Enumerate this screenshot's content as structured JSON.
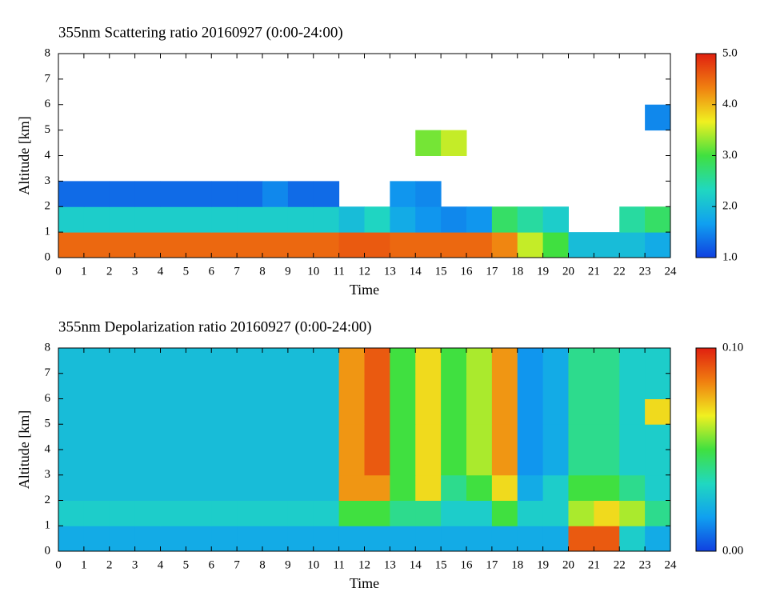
{
  "chart_data": [
    {
      "type": "heatmap",
      "title": "355nm Scattering ratio  20160927 (0:00-24:00)",
      "xlabel": "Time",
      "ylabel": "Altitude [km]",
      "xlim": [
        0,
        24
      ],
      "ylim": [
        0,
        8
      ],
      "xticks": [
        0,
        1,
        2,
        3,
        4,
        5,
        6,
        7,
        8,
        9,
        10,
        11,
        12,
        13,
        14,
        15,
        16,
        17,
        18,
        19,
        20,
        21,
        22,
        23,
        24
      ],
      "yticks": [
        0,
        1,
        2,
        3,
        4,
        5,
        6,
        7,
        8
      ],
      "clim": [
        1,
        5
      ],
      "cticks": [
        {
          "value": 1,
          "label": "1.0"
        },
        {
          "value": 2,
          "label": "2.0"
        },
        {
          "value": 3,
          "label": "3.0"
        },
        {
          "value": 4,
          "label": "4.0"
        },
        {
          "value": 5,
          "label": "5.0"
        }
      ],
      "colormap": [
        "#1040e0",
        "#10a0f0",
        "#20d8c0",
        "#40e040",
        "#f0f020",
        "#f08010",
        "#e02010"
      ],
      "values": [
        [
          4.5,
          4.5,
          4.5,
          4.5,
          4.5,
          4.5,
          4.5,
          4.5,
          4.5,
          4.5,
          4.5,
          4.6,
          4.6,
          4.5,
          4.5,
          4.5,
          4.5,
          4.3,
          3.5,
          3.0,
          2.0,
          2.0,
          2.0,
          1.8
        ],
        [
          2.2,
          2.2,
          2.2,
          2.2,
          2.2,
          2.2,
          2.2,
          2.2,
          2.2,
          2.2,
          2.2,
          2.0,
          2.3,
          1.8,
          1.6,
          1.5,
          1.6,
          2.8,
          2.5,
          2.2,
          null,
          null,
          2.5,
          2.8
        ],
        [
          1.3,
          1.3,
          1.3,
          1.3,
          1.3,
          1.3,
          1.3,
          1.3,
          1.5,
          1.3,
          1.3,
          null,
          null,
          1.6,
          1.5,
          null,
          null,
          null,
          null,
          null,
          null,
          null,
          null,
          null
        ],
        [
          null,
          null,
          null,
          null,
          null,
          null,
          null,
          null,
          null,
          null,
          null,
          null,
          null,
          null,
          null,
          null,
          null,
          null,
          null,
          null,
          null,
          null,
          null,
          null
        ],
        [
          null,
          null,
          null,
          null,
          null,
          null,
          null,
          null,
          null,
          null,
          null,
          null,
          null,
          null,
          3.2,
          3.5,
          null,
          null,
          null,
          null,
          null,
          null,
          null,
          null
        ],
        [
          null,
          null,
          null,
          null,
          null,
          null,
          null,
          null,
          null,
          null,
          null,
          null,
          null,
          null,
          null,
          null,
          null,
          null,
          null,
          null,
          null,
          null,
          null,
          1.5
        ],
        [
          null,
          null,
          null,
          null,
          null,
          null,
          null,
          null,
          null,
          null,
          null,
          null,
          null,
          null,
          null,
          null,
          null,
          null,
          null,
          null,
          null,
          null,
          null,
          null
        ],
        [
          null,
          null,
          null,
          null,
          null,
          null,
          null,
          null,
          null,
          null,
          null,
          null,
          null,
          null,
          null,
          null,
          null,
          null,
          null,
          null,
          null,
          null,
          null,
          null
        ]
      ]
    },
    {
      "type": "heatmap",
      "title": "355nm Depolarization ratio  20160927 (0:00-24:00)",
      "xlabel": "Time",
      "ylabel": "Altitude [km]",
      "xlim": [
        0,
        24
      ],
      "ylim": [
        0,
        8
      ],
      "xticks": [
        0,
        1,
        2,
        3,
        4,
        5,
        6,
        7,
        8,
        9,
        10,
        11,
        12,
        13,
        14,
        15,
        16,
        17,
        18,
        19,
        20,
        21,
        22,
        23,
        24
      ],
      "yticks": [
        0,
        1,
        2,
        3,
        4,
        5,
        6,
        7,
        8
      ],
      "clim": [
        0,
        0.1
      ],
      "cticks": [
        {
          "value": 0,
          "label": "0.00"
        },
        {
          "value": 0.1,
          "label": "0.10"
        }
      ],
      "colormap": [
        "#1040e0",
        "#10a0f0",
        "#20d8c0",
        "#40e040",
        "#f0f020",
        "#f08010",
        "#e02010"
      ],
      "values": [
        [
          0.02,
          0.02,
          0.02,
          0.02,
          0.02,
          0.02,
          0.02,
          0.02,
          0.02,
          0.02,
          0.02,
          0.02,
          0.02,
          0.02,
          0.02,
          0.02,
          0.02,
          0.02,
          0.02,
          0.02,
          0.09,
          0.09,
          0.03,
          0.02
        ],
        [
          0.03,
          0.03,
          0.03,
          0.03,
          0.03,
          0.03,
          0.03,
          0.03,
          0.03,
          0.03,
          0.03,
          0.05,
          0.05,
          0.04,
          0.04,
          0.03,
          0.03,
          0.05,
          0.03,
          0.03,
          0.06,
          0.07,
          0.06,
          0.04
        ],
        [
          0.025,
          0.025,
          0.025,
          0.025,
          0.025,
          0.025,
          0.025,
          0.025,
          0.025,
          0.025,
          0.025,
          0.08,
          0.08,
          0.05,
          0.07,
          0.04,
          0.05,
          0.07,
          0.02,
          0.03,
          0.05,
          0.05,
          0.04,
          0.03
        ],
        [
          0.025,
          0.025,
          0.025,
          0.025,
          0.025,
          0.025,
          0.025,
          0.025,
          0.025,
          0.025,
          0.025,
          0.08,
          0.09,
          0.05,
          0.07,
          0.05,
          0.06,
          0.08,
          0.015,
          0.02,
          0.04,
          0.04,
          0.03,
          0.03
        ],
        [
          0.025,
          0.025,
          0.025,
          0.025,
          0.025,
          0.025,
          0.025,
          0.025,
          0.025,
          0.025,
          0.025,
          0.08,
          0.09,
          0.05,
          0.07,
          0.05,
          0.06,
          0.08,
          0.015,
          0.02,
          0.04,
          0.04,
          0.03,
          0.03
        ],
        [
          0.025,
          0.025,
          0.025,
          0.025,
          0.025,
          0.025,
          0.025,
          0.025,
          0.025,
          0.025,
          0.025,
          0.08,
          0.09,
          0.05,
          0.07,
          0.05,
          0.06,
          0.08,
          0.015,
          0.02,
          0.04,
          0.04,
          0.03,
          0.07
        ],
        [
          0.025,
          0.025,
          0.025,
          0.025,
          0.025,
          0.025,
          0.025,
          0.025,
          0.025,
          0.025,
          0.025,
          0.08,
          0.09,
          0.05,
          0.07,
          0.05,
          0.06,
          0.08,
          0.015,
          0.02,
          0.04,
          0.04,
          0.03,
          0.03
        ],
        [
          0.025,
          0.025,
          0.025,
          0.025,
          0.025,
          0.025,
          0.025,
          0.025,
          0.025,
          0.025,
          0.025,
          0.08,
          0.09,
          0.05,
          0.07,
          0.05,
          0.06,
          0.08,
          0.015,
          0.02,
          0.04,
          0.04,
          0.03,
          0.03
        ]
      ]
    }
  ]
}
